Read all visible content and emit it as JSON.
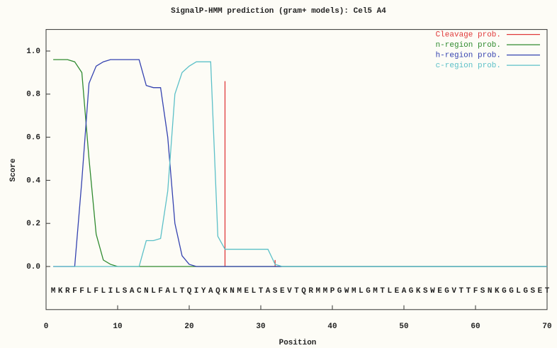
{
  "chart_data": {
    "type": "line",
    "title": "SignalP-HMM prediction (gram+ models): Cel5 A4",
    "x_label": "Position",
    "y_label": "Score",
    "x": [
      1,
      2,
      3,
      4,
      5,
      6,
      7,
      8,
      9,
      10,
      11,
      12,
      13,
      14,
      15,
      16,
      17,
      18,
      19,
      20,
      21,
      22,
      23,
      24,
      25,
      26,
      27,
      28,
      29,
      30,
      31,
      32,
      33,
      34,
      35,
      36,
      37,
      38,
      39,
      40,
      41,
      42,
      43,
      44,
      45,
      46,
      47,
      48,
      49,
      50,
      51,
      52,
      53,
      54,
      55,
      56,
      57,
      58,
      59,
      60,
      61,
      62,
      63,
      64,
      65,
      66,
      67,
      68,
      69,
      70
    ],
    "categories": [
      "M",
      "K",
      "R",
      "F",
      "F",
      "L",
      "F",
      "L",
      "I",
      "L",
      "S",
      "A",
      "C",
      "N",
      "L",
      "F",
      "A",
      "L",
      "T",
      "Q",
      "I",
      "Y",
      "A",
      "Q",
      "K",
      "N",
      "M",
      "E",
      "L",
      "T",
      "A",
      "S",
      "E",
      "V",
      "T",
      "Q",
      "R",
      "M",
      "M",
      "P",
      "G",
      "W",
      "M",
      "L",
      "G",
      "M",
      "T",
      "L",
      "E",
      "A",
      "G",
      "K",
      "S",
      "W",
      "E",
      "G",
      "V",
      "T",
      "T",
      "F",
      "S",
      "N",
      "K",
      "G",
      "G",
      "L",
      "G",
      "S",
      "E",
      "T"
    ],
    "series": [
      {
        "name": "Cleavage prob.",
        "color": "#e03a3a",
        "style": "impulses",
        "values": [
          0,
          0,
          0,
          0,
          0,
          0,
          0,
          0,
          0,
          0,
          0,
          0,
          0,
          0,
          0,
          0,
          0,
          0,
          0,
          0,
          0,
          0,
          0,
          0,
          0.86,
          0,
          0,
          0,
          0,
          0,
          0,
          0.03,
          0,
          0,
          0,
          0,
          0,
          0,
          0,
          0,
          0,
          0,
          0,
          0,
          0,
          0,
          0,
          0,
          0,
          0,
          0,
          0,
          0,
          0,
          0,
          0,
          0,
          0,
          0,
          0,
          0,
          0,
          0,
          0,
          0,
          0,
          0,
          0,
          0,
          0
        ]
      },
      {
        "name": "n-region prob.",
        "color": "#2f8a2f",
        "values": [
          0.96,
          0.96,
          0.96,
          0.95,
          0.9,
          0.5,
          0.15,
          0.03,
          0.01,
          0,
          0,
          0,
          0,
          0,
          0,
          0,
          0,
          0,
          0,
          0,
          0,
          0,
          0,
          0,
          0,
          0,
          0,
          0,
          0,
          0,
          0,
          0,
          0,
          0,
          0,
          0,
          0,
          0,
          0,
          0,
          0,
          0,
          0,
          0,
          0,
          0,
          0,
          0,
          0,
          0,
          0,
          0,
          0,
          0,
          0,
          0,
          0,
          0,
          0,
          0,
          0,
          0,
          0,
          0,
          0,
          0,
          0,
          0,
          0,
          0
        ]
      },
      {
        "name": "h-region prob.",
        "color": "#3442b0",
        "values": [
          0,
          0,
          0,
          0,
          0.4,
          0.85,
          0.93,
          0.95,
          0.96,
          0.96,
          0.96,
          0.96,
          0.96,
          0.84,
          0.83,
          0.83,
          0.6,
          0.2,
          0.05,
          0.01,
          0,
          0,
          0,
          0,
          0,
          0,
          0,
          0,
          0,
          0,
          0,
          0,
          0,
          0,
          0,
          0,
          0,
          0,
          0,
          0,
          0,
          0,
          0,
          0,
          0,
          0,
          0,
          0,
          0,
          0,
          0,
          0,
          0,
          0,
          0,
          0,
          0,
          0,
          0,
          0,
          0,
          0,
          0,
          0,
          0,
          0,
          0,
          0,
          0,
          0
        ]
      },
      {
        "name": "c-region prob.",
        "color": "#5cc0c8",
        "values": [
          0,
          0,
          0,
          0,
          0,
          0,
          0,
          0,
          0,
          0,
          0,
          0,
          0,
          0.12,
          0.12,
          0.13,
          0.35,
          0.8,
          0.9,
          0.93,
          0.95,
          0.95,
          0.95,
          0.14,
          0.08,
          0.08,
          0.08,
          0.08,
          0.08,
          0.08,
          0.08,
          0.01,
          0,
          0,
          0,
          0,
          0,
          0,
          0,
          0,
          0,
          0,
          0,
          0,
          0,
          0,
          0,
          0,
          0,
          0,
          0,
          0,
          0,
          0,
          0,
          0,
          0,
          0,
          0,
          0,
          0,
          0,
          0,
          0,
          0,
          0,
          0,
          0,
          0,
          0
        ]
      }
    ],
    "xlim": [
      0,
      70
    ],
    "xticks": [
      0,
      10,
      20,
      30,
      40,
      50,
      60,
      70
    ],
    "ylim": [
      -0.2,
      1.1
    ],
    "yticks": [
      {
        "value": 0,
        "label": "0.0"
      },
      {
        "value": 0.2,
        "label": "0.2"
      },
      {
        "value": 0.4,
        "label": "0.4"
      },
      {
        "value": 0.6,
        "label": "0.6"
      },
      {
        "value": 0.8,
        "label": "0.8"
      },
      {
        "value": 1,
        "label": "1.0"
      }
    ],
    "grid": false,
    "legend": "top-right"
  }
}
